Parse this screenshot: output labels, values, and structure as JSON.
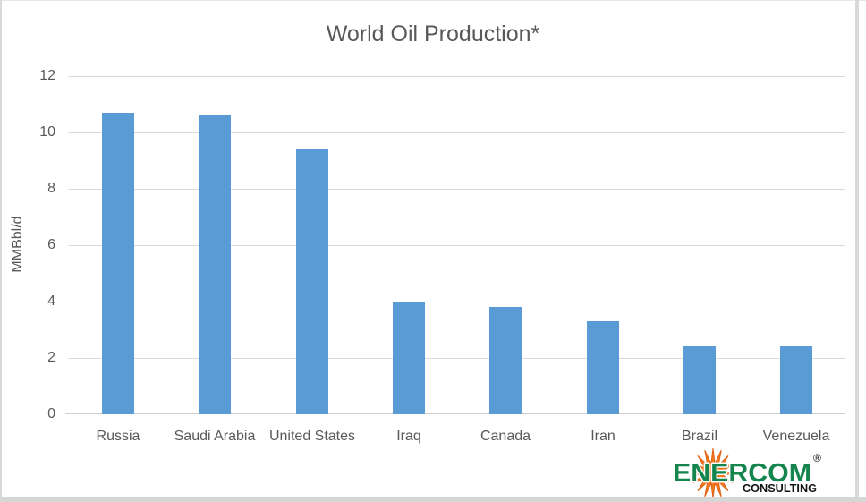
{
  "chart_data": {
    "type": "bar",
    "title": "World Oil Production*",
    "xlabel": "",
    "ylabel": "MMBbl/d",
    "categories": [
      "Russia",
      "Saudi Arabia",
      "United States",
      "Iraq",
      "Canada",
      "Iran",
      "Brazil",
      "Venezuela"
    ],
    "values": [
      10.7,
      10.6,
      9.4,
      4.0,
      3.8,
      3.3,
      2.4,
      2.4
    ],
    "ylim": [
      0,
      12
    ],
    "yticks": [
      0,
      2,
      4,
      6,
      8,
      10,
      12
    ],
    "grid": "horizontal",
    "legend": "none",
    "bar_color": "#5b9bd5",
    "gridline_color": "#d9d9d9",
    "text_color": "#595959"
  },
  "logo": {
    "brand": "ENERCOM",
    "registered": "®",
    "subtitle": "CONSULTING",
    "green": "#15854e",
    "orange": "#f47b20",
    "orange_dark": "#e2600f",
    "dark": "#141414"
  }
}
